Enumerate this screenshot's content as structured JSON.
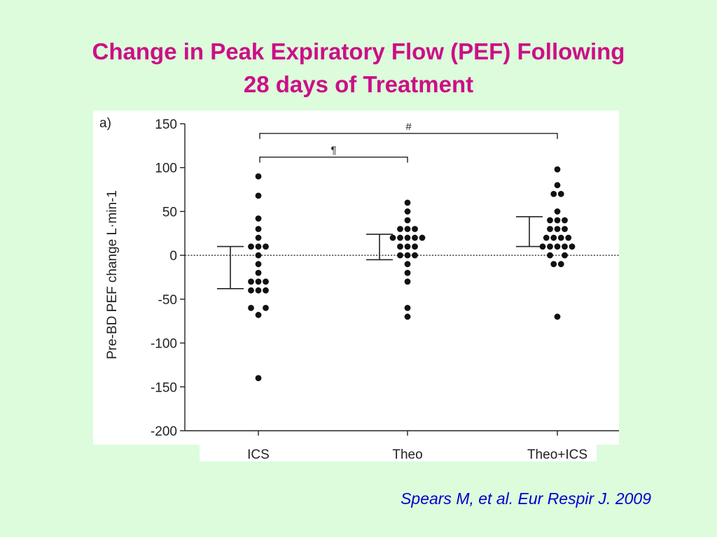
{
  "slide": {
    "title_line1": "Change in Peak Expiratory Flow (PEF) Following",
    "title_line2": "28 days of Treatment",
    "citation": "Spears M, et al. Eur Respir J. 2009",
    "title_color": "#cc0f86",
    "citation_color": "#0000cc",
    "background": "#dcfcdc"
  },
  "chart_data": {
    "type": "scatter",
    "panel_label": "a)",
    "ylabel": "Pre-BD PEF change L·min-1",
    "ylim": [
      -200,
      150
    ],
    "yticks": [
      150,
      100,
      50,
      0,
      -50,
      -100,
      -150,
      -200
    ],
    "categories": [
      "ICS",
      "Theo",
      "Theo+ICS"
    ],
    "reference_line": 0,
    "groups": [
      {
        "name": "ICS",
        "interval": [
          -38,
          10
        ],
        "points": [
          {
            "y": 90,
            "o": 0
          },
          {
            "y": 68,
            "o": 0
          },
          {
            "y": 42,
            "o": 0
          },
          {
            "y": 30,
            "o": 0
          },
          {
            "y": 20,
            "o": 0
          },
          {
            "y": 10,
            "o": -1
          },
          {
            "y": 10,
            "o": 0
          },
          {
            "y": 10,
            "o": 1
          },
          {
            "y": 0,
            "o": 0
          },
          {
            "y": -10,
            "o": 0
          },
          {
            "y": -20,
            "o": 0
          },
          {
            "y": -30,
            "o": -1
          },
          {
            "y": -30,
            "o": 0
          },
          {
            "y": -30,
            "o": 1
          },
          {
            "y": -40,
            "o": -1
          },
          {
            "y": -40,
            "o": 0
          },
          {
            "y": -40,
            "o": 1
          },
          {
            "y": -60,
            "o": -1
          },
          {
            "y": -60,
            "o": 1
          },
          {
            "y": -68,
            "o": 0
          },
          {
            "y": -140,
            "o": 0
          }
        ]
      },
      {
        "name": "Theo",
        "interval": [
          -5,
          24
        ],
        "points": [
          {
            "y": 60,
            "o": 0
          },
          {
            "y": 50,
            "o": 0
          },
          {
            "y": 40,
            "o": 0
          },
          {
            "y": 30,
            "o": -1
          },
          {
            "y": 30,
            "o": 0
          },
          {
            "y": 30,
            "o": 1
          },
          {
            "y": 20,
            "o": -2
          },
          {
            "y": 20,
            "o": -1
          },
          {
            "y": 20,
            "o": 0
          },
          {
            "y": 20,
            "o": 1
          },
          {
            "y": 20,
            "o": 2
          },
          {
            "y": 10,
            "o": -1
          },
          {
            "y": 10,
            "o": 0
          },
          {
            "y": 10,
            "o": 1
          },
          {
            "y": 0,
            "o": -1
          },
          {
            "y": 0,
            "o": 0
          },
          {
            "y": 0,
            "o": 1
          },
          {
            "y": -10,
            "o": 0
          },
          {
            "y": -20,
            "o": 0
          },
          {
            "y": -30,
            "o": 0
          },
          {
            "y": -60,
            "o": 0
          },
          {
            "y": -70,
            "o": 0
          }
        ]
      },
      {
        "name": "Theo+ICS",
        "interval": [
          10,
          44
        ],
        "points": [
          {
            "y": 98,
            "o": 0
          },
          {
            "y": 80,
            "o": 0
          },
          {
            "y": 70,
            "o": -0.5
          },
          {
            "y": 70,
            "o": 0.5
          },
          {
            "y": 50,
            "o": 0
          },
          {
            "y": 40,
            "o": -1
          },
          {
            "y": 40,
            "o": 0
          },
          {
            "y": 40,
            "o": 1
          },
          {
            "y": 30,
            "o": -1
          },
          {
            "y": 30,
            "o": 0
          },
          {
            "y": 30,
            "o": 1
          },
          {
            "y": 20,
            "o": -1.5
          },
          {
            "y": 20,
            "o": -0.5
          },
          {
            "y": 20,
            "o": 0.5
          },
          {
            "y": 20,
            "o": 1.5
          },
          {
            "y": 10,
            "o": -2
          },
          {
            "y": 10,
            "o": -1
          },
          {
            "y": 10,
            "o": 0
          },
          {
            "y": 10,
            "o": 1
          },
          {
            "y": 10,
            "o": 2
          },
          {
            "y": 0,
            "o": -1
          },
          {
            "y": 0,
            "o": 1
          },
          {
            "y": -10,
            "o": -0.5
          },
          {
            "y": -10,
            "o": 0.5
          },
          {
            "y": -70,
            "o": 0
          }
        ]
      }
    ],
    "significance": [
      {
        "from": "ICS",
        "to": "Theo",
        "symbol": "¶",
        "y": 112
      },
      {
        "from": "ICS",
        "to": "Theo+ICS",
        "symbol": "#",
        "y": 139
      }
    ]
  }
}
